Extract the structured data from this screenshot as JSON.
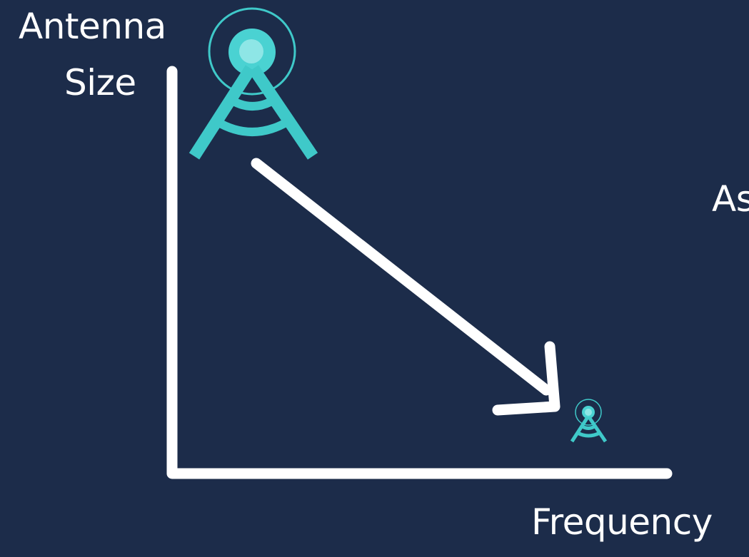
{
  "diagram": {
    "y_axis_label_line1": "Antenna",
    "y_axis_label_line2": "Size",
    "x_axis_label": "Frequency",
    "cut_off_text": "As",
    "large_icon": "antenna-tower-icon",
    "small_icon": "antenna-tower-icon",
    "colors": {
      "background": "#1c2c4a",
      "axis": "#ffffff",
      "arrow": "#ffffff",
      "icon": "#3fc9c9",
      "icon_light": "#7ee0e0"
    }
  }
}
